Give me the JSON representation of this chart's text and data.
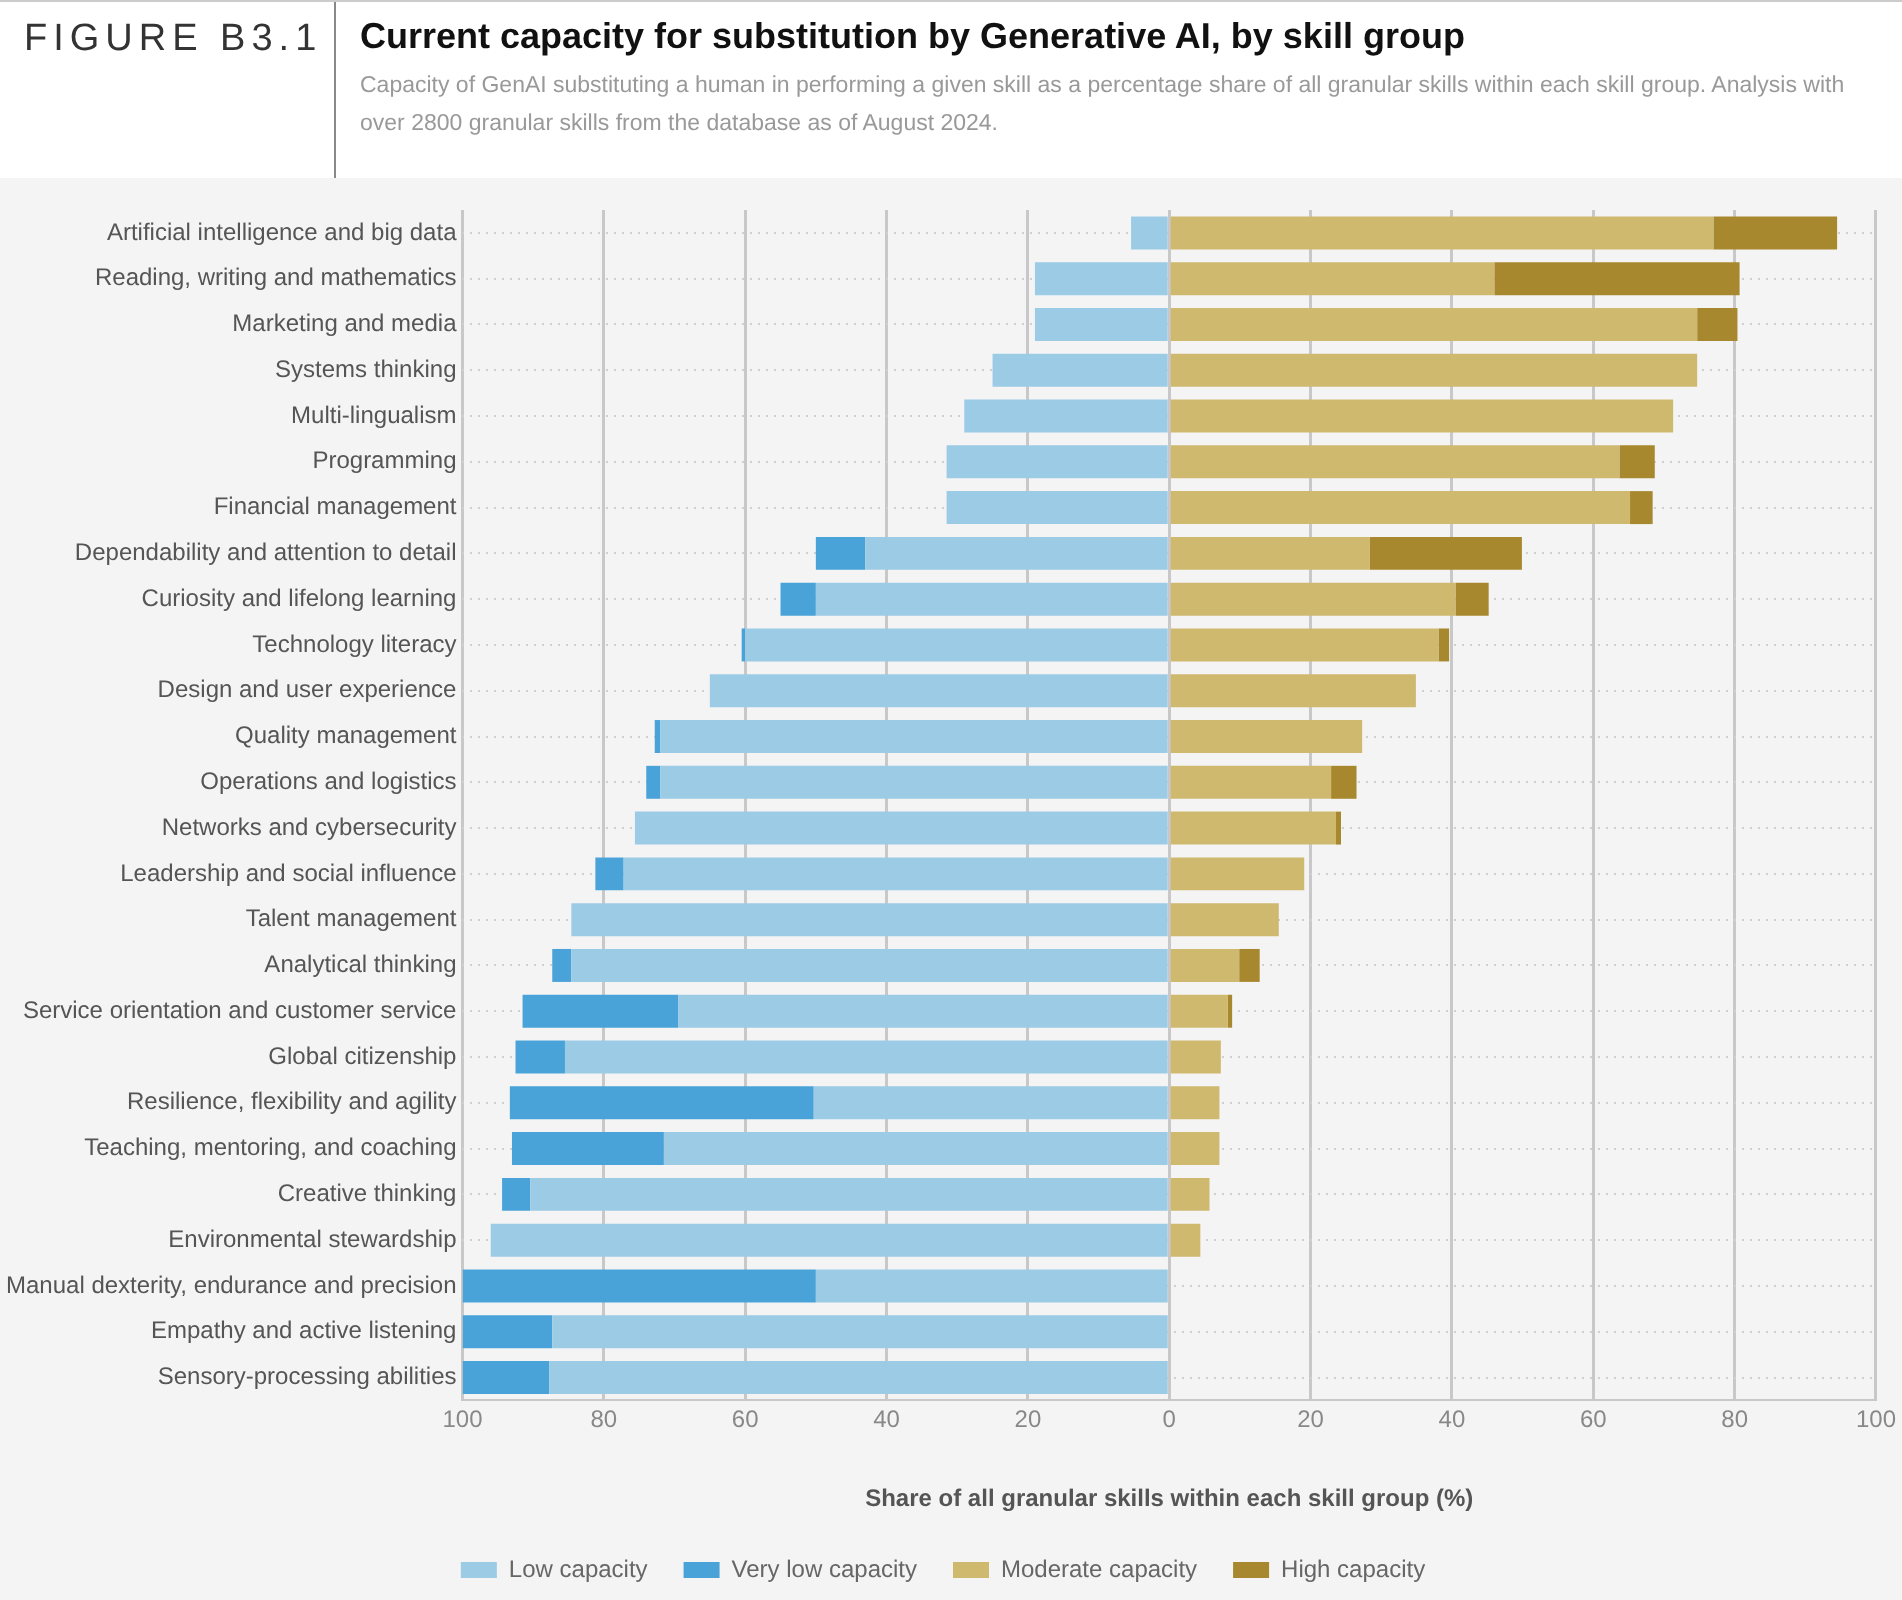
{
  "chart_data": {
    "type": "bar",
    "orientation": "horizontal",
    "stacked": true,
    "title": "Current capacity for substitution by Generative AI, by skill group",
    "subtitle": "Capacity of GenAI substituting a human in performing a given skill as a percentage share of all granular skills within each skill group. Analysis with over 2800 granular skills from the database as of August 2024.",
    "annotations": [
      "FIGURE B3.1"
    ],
    "xlabel": "Share of all granular skills within each skill group (%)",
    "categories": [
      "Artificial intelligence and big data",
      "Reading, writing and mathematics",
      "Marketing and media",
      "Systems thinking",
      "Multi-lingualism",
      "Programming",
      "Financial management",
      "Dependability and attention to detail",
      "Curiosity and lifelong learning",
      "Technology literacy",
      "Design and user experience",
      "Quality management",
      "Operations and logistics",
      "Networks and cybersecurity",
      "Leadership and social influence",
      "Talent management",
      "Analytical thinking",
      "Service orientation and customer service",
      "Global citizenship",
      "Resilience, flexibility and agility",
      "Teaching, mentoring, and coaching",
      "Creative thinking",
      "Environmental stewardship",
      "Manual dexterity, endurance and precision",
      "Empathy and active listening",
      "Sensory-processing abilities"
    ],
    "series": [
      {
        "name": "Low capacity",
        "color": "#9ccbe6",
        "values": [
          -5.4,
          -19,
          -19,
          -25,
          -29,
          -31.5,
          -31.5,
          -43,
          -50,
          -60,
          -65,
          -72,
          -72,
          -75.6,
          -77.2,
          -84.6,
          -84.6,
          -69.5,
          -85.5,
          -50.3,
          -71.5,
          -90.4,
          -96,
          -50,
          -87.3,
          -87.7
        ]
      },
      {
        "name": "Very low capacity",
        "color": "#4aa3d8",
        "values": [
          0,
          0,
          0,
          0,
          0,
          0,
          0,
          -7,
          -5,
          -0.5,
          0,
          -0.8,
          -2,
          0,
          -4,
          0,
          -2.7,
          -22,
          -7,
          -43,
          -21.5,
          -4,
          0,
          -50,
          -12.7,
          -12.3
        ]
      },
      {
        "name": "Moderate capacity",
        "color": "#cfb96f",
        "values": [
          77,
          46,
          74.7,
          74.7,
          71.3,
          63.7,
          65.2,
          28.4,
          40.5,
          38.1,
          34.9,
          27.3,
          22.9,
          23.6,
          19.1,
          15.5,
          9.9,
          8.3,
          7.3,
          7.1,
          7.1,
          5.7,
          4.4,
          0,
          0,
          0
        ]
      },
      {
        "name": "High capacity",
        "color": "#a8882f",
        "values": [
          17.5,
          34.7,
          5.7,
          0,
          0,
          5,
          3.2,
          21.5,
          4.7,
          1.5,
          0,
          0,
          3.6,
          0.7,
          0,
          0,
          2.9,
          0.6,
          0,
          0,
          0,
          0,
          0,
          0,
          0,
          0
        ]
      }
    ],
    "xlim": [
      -100,
      100
    ],
    "xticks": [
      {
        "value": -100,
        "label": "100"
      },
      {
        "value": -80,
        "label": "80"
      },
      {
        "value": -60,
        "label": "60"
      },
      {
        "value": -40,
        "label": "40"
      },
      {
        "value": -20,
        "label": "20"
      },
      0,
      20,
      40,
      60,
      80,
      100
    ],
    "grid": true,
    "legend": "bottom"
  }
}
